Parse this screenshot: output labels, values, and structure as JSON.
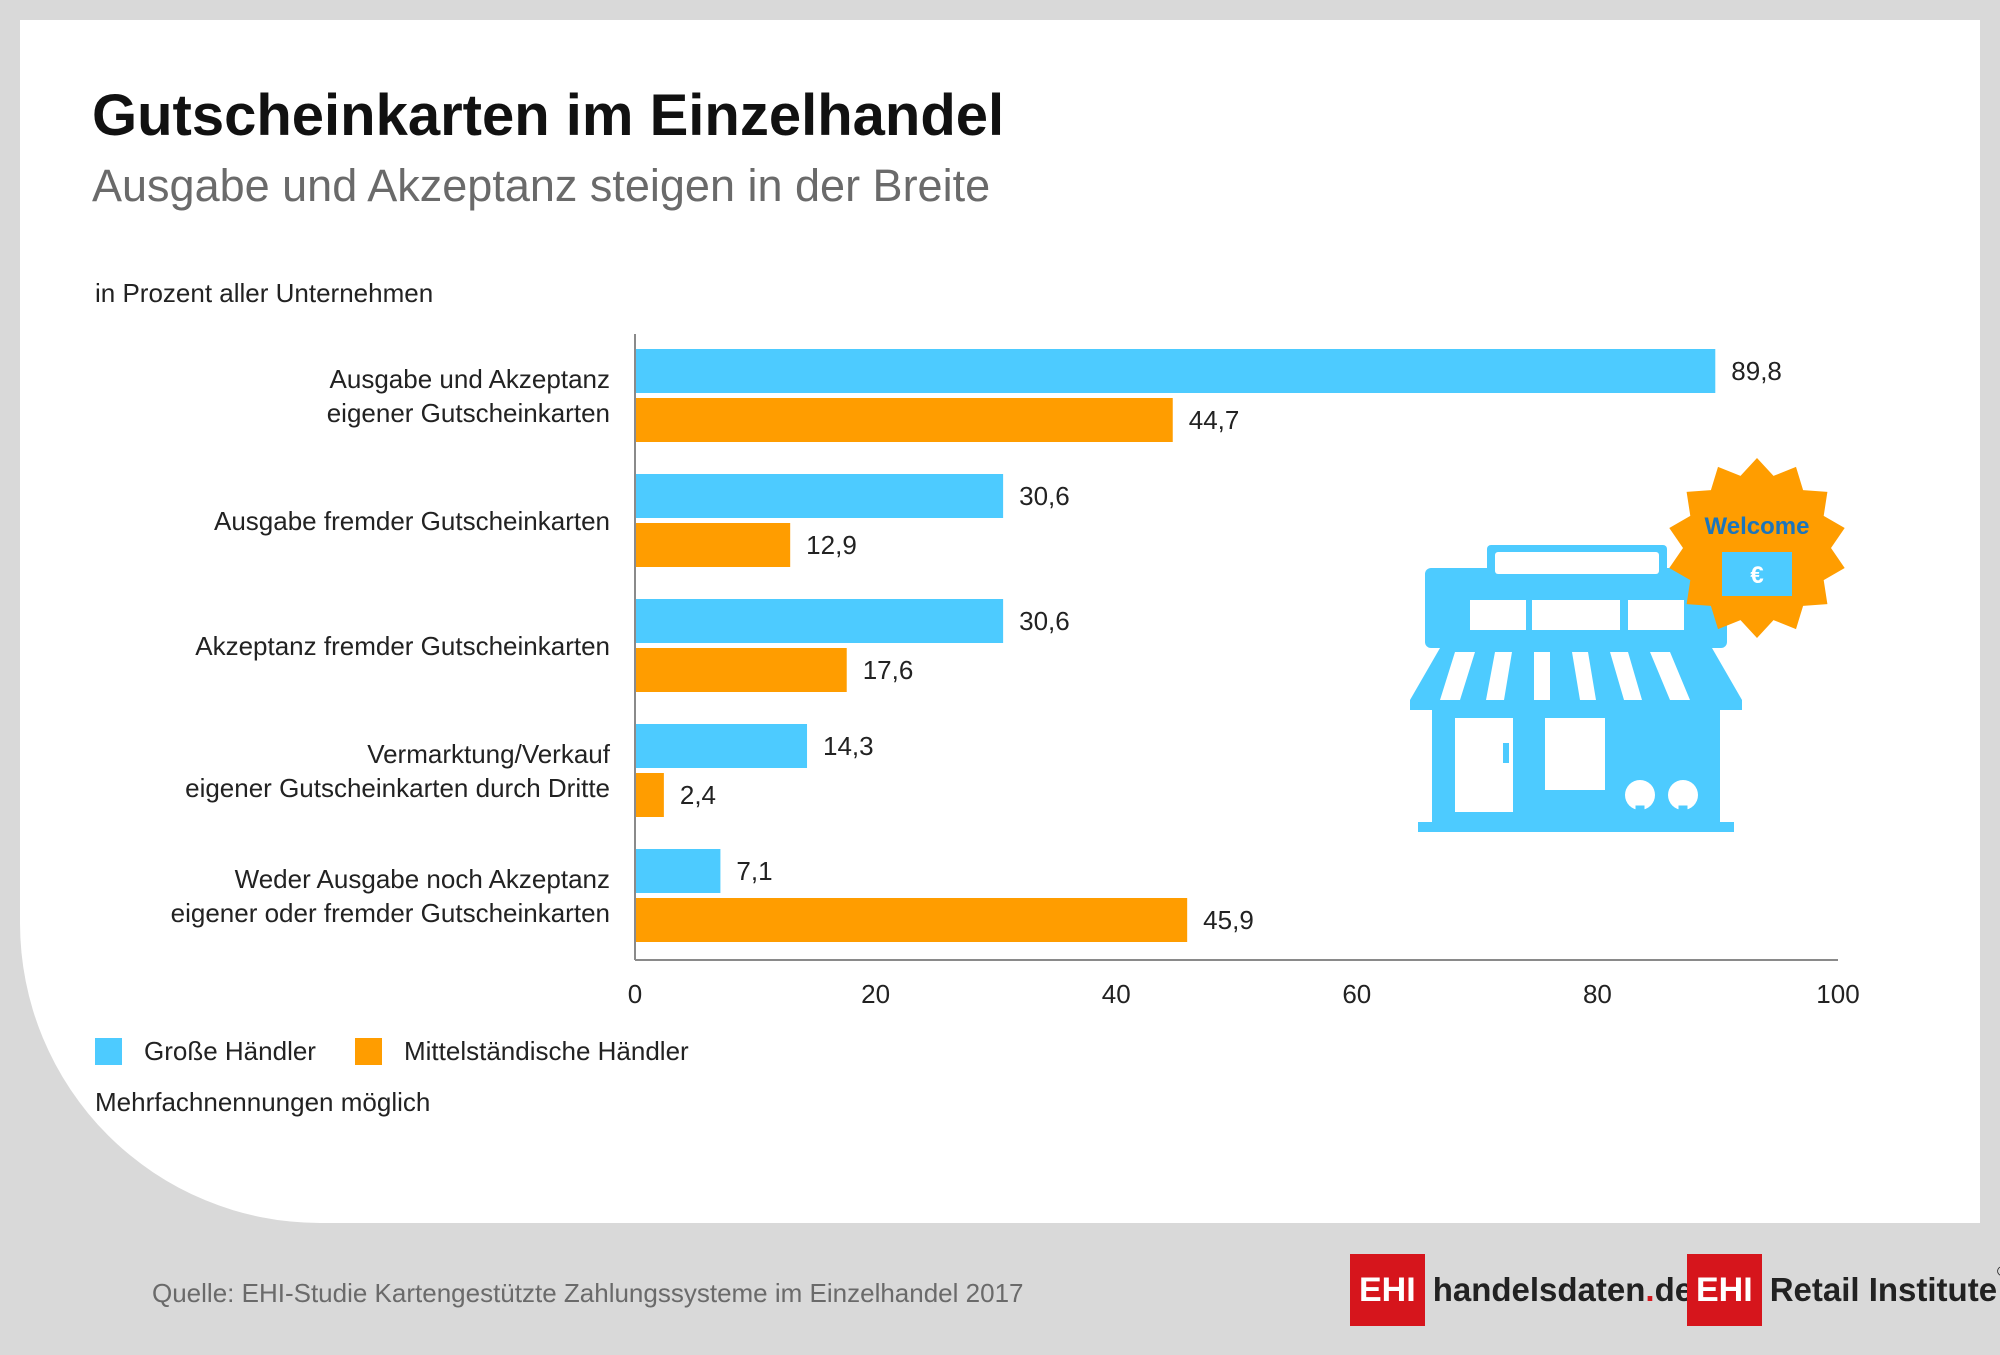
{
  "header": {
    "title": "Gutscheinkarten im Einzelhandel",
    "subtitle": "Ausgabe und Akzeptanz steigen in der Breite"
  },
  "unit_label": "in Prozent aller Unternehmen",
  "colors": {
    "grosse": "#4dcbff",
    "mittel": "#ff9d00",
    "axis": "#8a8a8a",
    "text": "#222222",
    "brand_red": "#d6151c"
  },
  "chart_data": {
    "type": "bar",
    "orientation": "horizontal",
    "categories": [
      [
        "Ausgabe und Akzeptanz",
        "eigener Gutscheinkarten"
      ],
      [
        "Ausgabe fremder Gutscheinkarten"
      ],
      [
        "Akzeptanz fremder Gutscheinkarten"
      ],
      [
        "Vermarktung/Verkauf",
        "eigener Gutscheinkarten durch Dritte"
      ],
      [
        "Weder Ausgabe noch Akzeptanz",
        "eigener oder fremder Gutscheinkarten"
      ]
    ],
    "series": [
      {
        "name": "Große Händler",
        "values": [
          89.8,
          30.6,
          30.6,
          14.3,
          7.1
        ],
        "labels": [
          "89,8",
          "30,6",
          "30,6",
          "14,3",
          "7,1"
        ],
        "color": "#4dcbff"
      },
      {
        "name": "Mittelständische Händler",
        "values": [
          44.7,
          12.9,
          17.6,
          2.4,
          45.9
        ],
        "labels": [
          "44,7",
          "12,9",
          "17,6",
          "2,4",
          "45,9"
        ],
        "color": "#ff9d00"
      }
    ],
    "xlim": [
      0,
      100
    ],
    "xticks": [
      0,
      20,
      40,
      60,
      80,
      100
    ],
    "grid": false,
    "legend_position": "bottom-left"
  },
  "illustration": {
    "icon": "storefront-icon",
    "badge_text": "Welcome",
    "badge_symbol": "€"
  },
  "note": "Mehrfachnennungen möglich",
  "source": "Quelle: EHI-Studie Kartengestützte Zahlungssysteme im Einzelhandel 2017",
  "logos": {
    "logo1_box": "EHI",
    "logo1_text_a": "handelsdaten",
    "logo1_text_dot": ".",
    "logo1_text_b": "de",
    "logo2_box": "EHI",
    "logo2_text": "Retail Institute",
    "logo2_reg": "®"
  }
}
